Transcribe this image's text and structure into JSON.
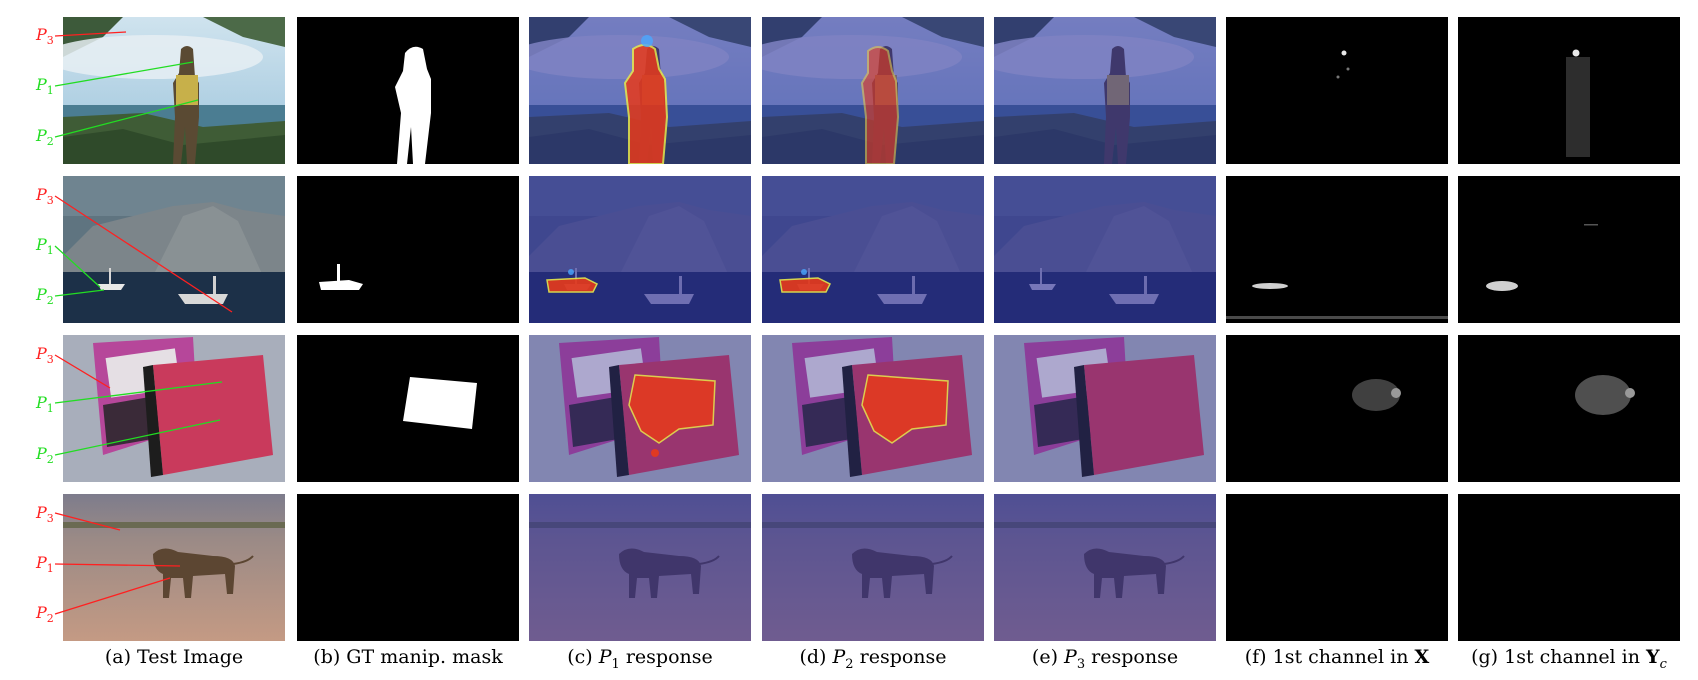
{
  "captions": [
    {
      "prefix": "(a) Test Image",
      "var": "",
      "sub": "",
      "suffix": ""
    },
    {
      "prefix": "(b) GT manip. mask",
      "var": "",
      "sub": "",
      "suffix": ""
    },
    {
      "prefix": "(c) ",
      "var": "P",
      "sub": "1",
      "suffix": " response"
    },
    {
      "prefix": "(d) ",
      "var": "P",
      "sub": "2",
      "suffix": " response"
    },
    {
      "prefix": "(e) ",
      "var": "P",
      "sub": "3",
      "suffix": " response"
    },
    {
      "prefix": "(f) 1st channel in ",
      "bold": "X",
      "sub": "",
      "suffix": ""
    },
    {
      "prefix": "(g) 1st channel in ",
      "bold": "Y",
      "sub": "c",
      "suffix": ""
    }
  ],
  "point_labels": {
    "var": "P",
    "p1": "1",
    "p2": "2",
    "p3": "3"
  },
  "colors": {
    "p3_label": "#ff2020",
    "p1_p2_label_green": "#22dd22",
    "p1_p2_label_red": "#ff2020",
    "heat_hot": "#e83a1a",
    "heat_blue": "#2a2a9a"
  },
  "rows": [
    {
      "name": "woman-fog",
      "p1_color": "green",
      "p2_color": "green",
      "has_mask": true
    },
    {
      "name": "boats",
      "p1_color": "green",
      "p2_color": "green",
      "has_mask": true
    },
    {
      "name": "notebooks",
      "p1_color": "green",
      "p2_color": "green",
      "has_mask": true
    },
    {
      "name": "lioness",
      "p1_color": "red",
      "p2_color": "red",
      "has_mask": false
    }
  ]
}
